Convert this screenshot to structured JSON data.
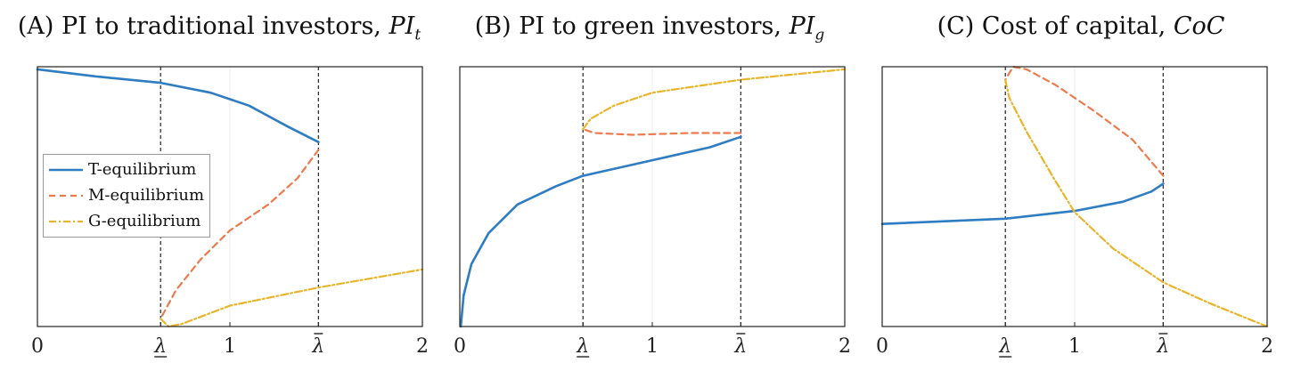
{
  "colors": {
    "T-equilibrium": "#2E7CC1",
    "M-equilibrium": "#EC7A4E",
    "G-equilibrium": "#E8B42A"
  },
  "legend": {
    "placement": "center-left of panel A",
    "items": [
      {
        "label": "T-equilibrium",
        "style": "solid",
        "color": "#2E7CC1"
      },
      {
        "label": "M-equilibrium",
        "style": "dashed",
        "color": "#EC7A4E"
      },
      {
        "label": "G-equilibrium",
        "style": "dashdot",
        "color": "#E8B42A"
      }
    ]
  },
  "chart_data": [
    {
      "type": "line",
      "title_prefix": "(A) PI to traditional investors, ",
      "title_symbol": "PI",
      "title_sub": "t",
      "xlim": [
        0,
        2
      ],
      "ylim": [
        0,
        1
      ],
      "xticks": [
        {
          "value": 0,
          "label": "0"
        },
        {
          "value": 0.64,
          "label": "λ",
          "mark": "underline"
        },
        {
          "value": 1,
          "label": "1"
        },
        {
          "value": 1.46,
          "label": "λ",
          "mark": "bar"
        },
        {
          "value": 2,
          "label": "2"
        }
      ],
      "vlines": [
        0.64,
        1.46
      ],
      "grid": "faint vertical at x=1",
      "series": [
        {
          "name": "T-equilibrium",
          "style": "solid",
          "points": [
            [
              0,
              0.99
            ],
            [
              0.3,
              0.963
            ],
            [
              0.64,
              0.938
            ],
            [
              0.9,
              0.9
            ],
            [
              1.1,
              0.85
            ],
            [
              1.3,
              0.77
            ],
            [
              1.46,
              0.71
            ]
          ]
        },
        {
          "name": "M-equilibrium",
          "style": "dashed",
          "points": [
            [
              1.46,
              0.68
            ],
            [
              1.35,
              0.57
            ],
            [
              1.2,
              0.47
            ],
            [
              1.0,
              0.37
            ],
            [
              0.85,
              0.26
            ],
            [
              0.72,
              0.14
            ],
            [
              0.64,
              0.03
            ]
          ]
        },
        {
          "name": "G-equilibrium",
          "style": "dashdot",
          "points": [
            [
              0.64,
              0.03
            ],
            [
              0.68,
              0.0
            ],
            [
              0.75,
              0.01
            ],
            [
              1.0,
              0.08
            ],
            [
              1.46,
              0.15
            ],
            [
              2.0,
              0.22
            ]
          ]
        }
      ]
    },
    {
      "type": "line",
      "title_prefix": "(B) PI to green investors, ",
      "title_symbol": "PI",
      "title_sub": "g",
      "xlim": [
        0,
        2
      ],
      "ylim": [
        0,
        1
      ],
      "xticks": [
        {
          "value": 0,
          "label": "0"
        },
        {
          "value": 0.64,
          "label": "λ",
          "mark": "underline"
        },
        {
          "value": 1,
          "label": "1"
        },
        {
          "value": 1.46,
          "label": "λ",
          "mark": "bar"
        },
        {
          "value": 2,
          "label": "2"
        }
      ],
      "vlines": [
        0.64,
        1.46
      ],
      "grid": "faint vertical at x=1",
      "series": [
        {
          "name": "T-equilibrium",
          "style": "solid",
          "points": [
            [
              0.005,
              0.0
            ],
            [
              0.02,
              0.12
            ],
            [
              0.06,
              0.24
            ],
            [
              0.15,
              0.36
            ],
            [
              0.3,
              0.47
            ],
            [
              0.5,
              0.54
            ],
            [
              0.64,
              0.58
            ],
            [
              1.0,
              0.64
            ],
            [
              1.3,
              0.69
            ],
            [
              1.46,
              0.73
            ]
          ]
        },
        {
          "name": "M-equilibrium",
          "style": "dashed",
          "points": [
            [
              1.46,
              0.745
            ],
            [
              1.2,
              0.745
            ],
            [
              0.9,
              0.738
            ],
            [
              0.7,
              0.745
            ],
            [
              0.64,
              0.76
            ]
          ]
        },
        {
          "name": "G-equilibrium",
          "style": "dashdot",
          "points": [
            [
              0.64,
              0.76
            ],
            [
              0.68,
              0.8
            ],
            [
              0.8,
              0.85
            ],
            [
              1.0,
              0.9
            ],
            [
              1.46,
              0.95
            ],
            [
              2.0,
              0.99
            ]
          ]
        }
      ]
    },
    {
      "type": "line",
      "title_prefix": "(C) Cost of capital, ",
      "title_symbol": "CoC",
      "title_sub": "",
      "xlim": [
        0,
        2
      ],
      "ylim": [
        0,
        1
      ],
      "xticks": [
        {
          "value": 0,
          "label": "0"
        },
        {
          "value": 0.64,
          "label": "λ",
          "mark": "underline"
        },
        {
          "value": 1,
          "label": "1"
        },
        {
          "value": 1.46,
          "label": "λ",
          "mark": "bar"
        },
        {
          "value": 2,
          "label": "2"
        }
      ],
      "vlines": [
        0.64,
        1.46
      ],
      "grid": "faint vertical at x=1",
      "series": [
        {
          "name": "T-equilibrium",
          "style": "solid",
          "points": [
            [
              0,
              0.395
            ],
            [
              0.64,
              0.415
            ],
            [
              1.0,
              0.445
            ],
            [
              1.25,
              0.48
            ],
            [
              1.4,
              0.52
            ],
            [
              1.46,
              0.55
            ]
          ]
        },
        {
          "name": "M-equilibrium",
          "style": "dashed",
          "points": [
            [
              1.46,
              0.58
            ],
            [
              1.3,
              0.72
            ],
            [
              1.1,
              0.83
            ],
            [
              0.9,
              0.93
            ],
            [
              0.75,
              0.99
            ],
            [
              0.68,
              1.0
            ],
            [
              0.64,
              0.95
            ]
          ]
        },
        {
          "name": "G-equilibrium",
          "style": "dashdot",
          "points": [
            [
              0.64,
              0.95
            ],
            [
              0.66,
              0.88
            ],
            [
              0.75,
              0.75
            ],
            [
              0.9,
              0.56
            ],
            [
              1.0,
              0.44
            ],
            [
              1.2,
              0.3
            ],
            [
              1.46,
              0.17
            ],
            [
              1.7,
              0.09
            ],
            [
              2.0,
              0.0
            ]
          ]
        }
      ]
    }
  ]
}
